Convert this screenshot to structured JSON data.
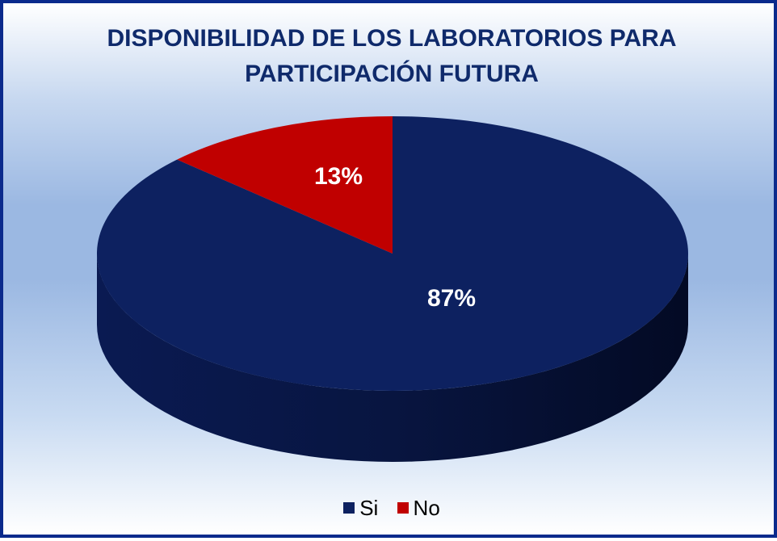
{
  "chart_data": {
    "type": "pie",
    "title_lines": [
      "DISPONIBILIDAD DE LOS LABORATORIOS PARA",
      "PARTICIPACIÓN FUTURA"
    ],
    "slices": [
      {
        "name": "Si",
        "value": 87,
        "label": "87%",
        "color": "#0d2160"
      },
      {
        "name": "No",
        "value": 13,
        "label": "13%",
        "color": "#c00000"
      }
    ],
    "legend_position": "bottom",
    "style": "3d"
  }
}
